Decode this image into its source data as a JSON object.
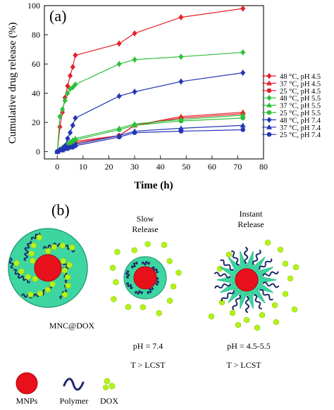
{
  "panel_a": {
    "label": "(a)",
    "chart_data": {
      "type": "line",
      "xlabel": "Time (h)",
      "ylabel": "Cumulative drug release (%)",
      "xlim": [
        -5,
        80
      ],
      "ylim": [
        -5,
        100
      ],
      "xticks": [
        "0",
        "10",
        "20",
        "30",
        "40",
        "50",
        "60",
        "70",
        "80"
      ],
      "yticks": [
        "0",
        "20",
        "40",
        "60",
        "80",
        "100"
      ],
      "x": [
        0,
        1,
        2,
        3,
        4,
        5,
        6,
        7,
        24,
        30,
        48,
        72
      ],
      "legend_position": "right",
      "series": [
        {
          "name": "48 °C, pH 4.5",
          "color": "#e4202a",
          "marker": "diamond",
          "values": [
            0,
            17,
            27,
            37,
            45,
            52,
            58,
            66,
            74,
            81,
            92,
            98
          ]
        },
        {
          "name": "37 °C, pH 4.5",
          "color": "#e4202a",
          "marker": "triangle",
          "values": [
            0,
            1,
            2,
            3,
            4,
            5,
            6,
            7,
            11,
            18,
            24,
            27
          ]
        },
        {
          "name": "25 °C, pH 4.5",
          "color": "#e4202a",
          "marker": "circle",
          "values": [
            0,
            1,
            2,
            3,
            3,
            4,
            5,
            6,
            11,
            18,
            23,
            26
          ]
        },
        {
          "name": "48 °C, pH 5.5",
          "color": "#2fbf3a",
          "marker": "diamond",
          "values": [
            0,
            24,
            29,
            35,
            40,
            43,
            44,
            46,
            60,
            63,
            65,
            68
          ]
        },
        {
          "name": "37 °C, pH 5.5",
          "color": "#2fbf3a",
          "marker": "triangle",
          "values": [
            0,
            2,
            3,
            4,
            6,
            7,
            8,
            9,
            16,
            19,
            22,
            25
          ]
        },
        {
          "name": "25 °C, pH 5.5",
          "color": "#2fbf3a",
          "marker": "circle",
          "values": [
            0,
            1,
            2,
            3,
            4,
            5,
            6,
            8,
            15,
            18,
            21,
            23
          ]
        },
        {
          "name": "48 °C, pH 7.4",
          "color": "#2436b4",
          "marker": "diamond",
          "values": [
            0,
            1,
            2,
            4,
            9,
            13,
            18,
            23,
            38,
            41,
            48,
            54
          ]
        },
        {
          "name": "37 °C, pH 7.4",
          "color": "#2436b4",
          "marker": "triangle",
          "values": [
            0,
            1,
            1,
            2,
            3,
            3,
            4,
            5,
            11,
            14,
            16,
            18
          ]
        },
        {
          "name": "25 °C, pH 7.4",
          "color": "#2436b4",
          "marker": "circle",
          "values": [
            0,
            1,
            1,
            2,
            2,
            3,
            3,
            4,
            10,
            13,
            14,
            15
          ]
        }
      ]
    }
  },
  "panel_b": {
    "label": "(b)",
    "mnc_label": "MNC@DOX",
    "slow_title_line1": "Slow",
    "slow_title_line2": "Release",
    "instant_title_line1": "Instant",
    "instant_title_line2": "Release",
    "slow_ph": "pH = 7.4",
    "slow_temp": "T > LCST",
    "instant_ph": "pH = 4.5-5.5",
    "instant_temp": "T > LCST",
    "legend": {
      "mnp": "MNPs",
      "polymer": "Polymer",
      "dox": "DOX"
    },
    "colors": {
      "mnp": "#e8101a",
      "shell": "#3dd6a0",
      "polymer": "#1f2a6a",
      "dox": "#b6f21a"
    }
  }
}
